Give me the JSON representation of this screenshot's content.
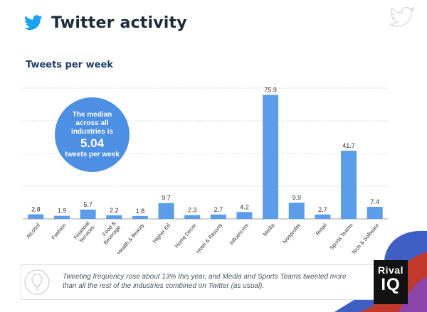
{
  "header": {
    "title": "Twitter activity"
  },
  "subtitle": "Tweets per week",
  "callout": {
    "line1": "The median",
    "line2": "across all",
    "line3": "industries is",
    "value": "5.04",
    "line4": "tweets per week"
  },
  "footer": {
    "text": "Tweeting frequency rose about 13% this year, and Media and Sports Teams tweeted more than all the rest of the industries combined on Twitter (as usual)."
  },
  "logo": {
    "line1": "Rival",
    "line2": "IQ"
  },
  "colors": {
    "bar": "#5b9de9",
    "accent": "#1da1f2",
    "callout": "#4d8fe3",
    "title": "#1c2a3a",
    "subtitle": "#1f3d6b"
  },
  "chart_data": {
    "type": "bar",
    "categories": [
      "Alcohol",
      "Fashion",
      "Financial Services",
      "Food & Beverage",
      "Health & Beauty",
      "Higher Ed",
      "Home Decor",
      "Hotel & Resorts",
      "Influencers",
      "Media",
      "Nonprofits",
      "Retail",
      "Sports Teams",
      "Tech & Software"
    ],
    "values": [
      2.8,
      1.9,
      5.7,
      2.2,
      1.8,
      9.7,
      2.3,
      2.7,
      4.2,
      75.9,
      9.9,
      2.7,
      41.7,
      7.4
    ],
    "data_labels": [
      "2.8",
      "1.9",
      "5.7",
      "2.2",
      "1.8",
      "9.7",
      "2.3",
      "2.7",
      "4.2",
      "75.9",
      "9.9",
      "2.7",
      "41.7",
      "7.4"
    ],
    "title": "Tweets per week",
    "xlabel": "",
    "ylabel": "",
    "ylim": [
      0,
      80
    ],
    "grid": true,
    "legend": "none"
  }
}
